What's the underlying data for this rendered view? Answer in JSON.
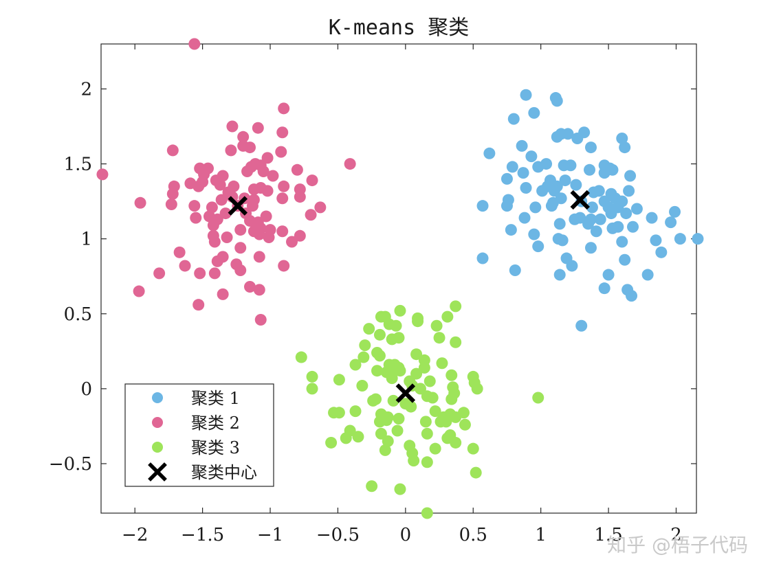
{
  "chart_data": {
    "type": "scatter",
    "title": "K-means 聚类",
    "xlabel": "",
    "ylabel": "",
    "xlim": [
      -2.25,
      2.15
    ],
    "ylim": [
      -0.83,
      2.3
    ],
    "x_ticks": [
      -2,
      -1.5,
      -1,
      -0.5,
      0,
      0.5,
      1,
      1.5,
      2
    ],
    "x_tick_labels": [
      "−2",
      "−1.5",
      "−1",
      "−0.5",
      "0",
      "0.5",
      "1",
      "1.5",
      "2"
    ],
    "y_ticks": [
      -0.5,
      0,
      0.5,
      1,
      1.5,
      2
    ],
    "y_tick_labels": [
      "−0.5",
      "0",
      "0.5",
      "1",
      "1.5",
      "2"
    ],
    "grid": false,
    "legend_position": "bottom-left",
    "series": [
      {
        "name": "聚类 1",
        "color": "#6cb6e4",
        "points": [
          [
            0.89,
            1.96
          ],
          [
            1.11,
            1.94
          ],
          [
            1.12,
            1.92
          ],
          [
            0.95,
            1.84
          ],
          [
            0.8,
            1.8
          ],
          [
            1.15,
            1.7
          ],
          [
            1.2,
            1.7
          ],
          [
            1.32,
            1.71
          ],
          [
            1.12,
            1.68
          ],
          [
            1.27,
            1.67
          ],
          [
            1.6,
            1.67
          ],
          [
            0.86,
            1.62
          ],
          [
            1.37,
            1.61
          ],
          [
            1.62,
            1.61
          ],
          [
            0.62,
            1.57
          ],
          [
            0.93,
            1.55
          ],
          [
            1.04,
            1.5
          ],
          [
            1.17,
            1.49
          ],
          [
            1.22,
            1.49
          ],
          [
            1.47,
            1.49
          ],
          [
            0.79,
            1.48
          ],
          [
            0.98,
            1.48
          ],
          [
            1.36,
            1.46
          ],
          [
            1.51,
            1.47
          ],
          [
            1.53,
            1.46
          ],
          [
            0.87,
            1.44
          ],
          [
            1.47,
            1.44
          ],
          [
            1.66,
            1.42
          ],
          [
            0.75,
            1.4
          ],
          [
            1.07,
            1.39
          ],
          [
            1.18,
            1.39
          ],
          [
            1.05,
            1.35
          ],
          [
            1.12,
            1.35
          ],
          [
            1.26,
            1.36
          ],
          [
            0.89,
            1.34
          ],
          [
            1.01,
            1.32
          ],
          [
            1.1,
            1.32
          ],
          [
            1.39,
            1.31
          ],
          [
            1.43,
            1.32
          ],
          [
            1.52,
            1.3
          ],
          [
            1.65,
            1.32
          ],
          [
            1.15,
            1.27
          ],
          [
            1.55,
            1.27
          ],
          [
            0.76,
            1.26
          ],
          [
            1.09,
            1.24
          ],
          [
            1.3,
            1.25
          ],
          [
            1.47,
            1.25
          ],
          [
            1.6,
            1.25
          ],
          [
            0.57,
            1.22
          ],
          [
            0.75,
            1.22
          ],
          [
            0.96,
            1.21
          ],
          [
            1.08,
            1.22
          ],
          [
            1.38,
            1.21
          ],
          [
            1.5,
            1.21
          ],
          [
            1.57,
            1.21
          ],
          [
            1.71,
            1.2
          ],
          [
            1.99,
            1.18
          ],
          [
            1.52,
            1.17
          ],
          [
            1.63,
            1.17
          ],
          [
            0.88,
            1.14
          ],
          [
            1.25,
            1.13
          ],
          [
            1.29,
            1.14
          ],
          [
            1.37,
            1.13
          ],
          [
            1.44,
            1.13
          ],
          [
            1.82,
            1.14
          ],
          [
            1.14,
            1.1
          ],
          [
            1.35,
            1.1
          ],
          [
            1.57,
            1.08
          ],
          [
            1.68,
            1.08
          ],
          [
            1.96,
            1.11
          ],
          [
            0.78,
            1.06
          ],
          [
            1.41,
            1.05
          ],
          [
            1.53,
            1.07
          ],
          [
            0.95,
            1.03
          ],
          [
            1.13,
            1.0
          ],
          [
            1.16,
            0.99
          ],
          [
            1.6,
            0.98
          ],
          [
            1.85,
            0.99
          ],
          [
            2.03,
            1.0
          ],
          [
            2.16,
            1.0
          ],
          [
            0.98,
            0.95
          ],
          [
            1.37,
            0.94
          ],
          [
            1.89,
            0.91
          ],
          [
            0.57,
            0.87
          ],
          [
            1.19,
            0.87
          ],
          [
            1.62,
            0.86
          ],
          [
            1.23,
            0.82
          ],
          [
            0.81,
            0.79
          ],
          [
            1.14,
            0.76
          ],
          [
            1.5,
            0.76
          ],
          [
            1.79,
            0.76
          ],
          [
            1.47,
            0.67
          ],
          [
            1.64,
            0.66
          ],
          [
            1.67,
            0.62
          ],
          [
            1.3,
            0.42
          ]
        ]
      },
      {
        "name": "聚类 2",
        "color": "#e06694",
        "points": [
          [
            -1.56,
            2.3
          ],
          [
            -0.9,
            1.87
          ],
          [
            -1.28,
            1.75
          ],
          [
            -1.09,
            1.74
          ],
          [
            -0.91,
            1.71
          ],
          [
            -1.2,
            1.68
          ],
          [
            -1.2,
            1.62
          ],
          [
            -1.15,
            1.61
          ],
          [
            -1.29,
            1.59
          ],
          [
            -1.72,
            1.59
          ],
          [
            -0.92,
            1.58
          ],
          [
            -1.02,
            1.54
          ],
          [
            -0.41,
            1.5
          ],
          [
            -1.14,
            1.48
          ],
          [
            -1.11,
            1.5
          ],
          [
            -1.07,
            1.49
          ],
          [
            -1.52,
            1.47
          ],
          [
            -1.46,
            1.47
          ],
          [
            -0.8,
            1.46
          ],
          [
            -1.17,
            1.45
          ],
          [
            -1.05,
            1.45
          ],
          [
            -2.24,
            1.43
          ],
          [
            -1.49,
            1.43
          ],
          [
            -1.35,
            1.42
          ],
          [
            -0.98,
            1.42
          ],
          [
            -1.4,
            1.39
          ],
          [
            -1.5,
            1.38
          ],
          [
            -0.69,
            1.39
          ],
          [
            -1.37,
            1.36
          ],
          [
            -1.71,
            1.35
          ],
          [
            -1.53,
            1.35
          ],
          [
            -1.27,
            1.35
          ],
          [
            -0.9,
            1.35
          ],
          [
            -1.59,
            1.37
          ],
          [
            -1.12,
            1.33
          ],
          [
            -1.07,
            1.34
          ],
          [
            -1.31,
            1.31
          ],
          [
            -1.02,
            1.32
          ],
          [
            -0.78,
            1.33
          ],
          [
            -1.72,
            1.3
          ],
          [
            -0.78,
            1.28
          ],
          [
            -1.28,
            1.28
          ],
          [
            -1.19,
            1.27
          ],
          [
            -1.36,
            1.26
          ],
          [
            -0.91,
            1.27
          ],
          [
            -1.12,
            1.26
          ],
          [
            -1.96,
            1.24
          ],
          [
            -1.73,
            1.23
          ],
          [
            -1.56,
            1.22
          ],
          [
            -1.43,
            1.21
          ],
          [
            -1.24,
            1.22
          ],
          [
            -1.13,
            1.22
          ],
          [
            -0.63,
            1.21
          ],
          [
            -1.33,
            1.17
          ],
          [
            -1.18,
            1.17
          ],
          [
            -0.7,
            1.16
          ],
          [
            -1.45,
            1.15
          ],
          [
            -1.03,
            1.15
          ],
          [
            -1.55,
            1.14
          ],
          [
            -1.39,
            1.13
          ],
          [
            -1.15,
            1.12
          ],
          [
            -1.09,
            1.11
          ],
          [
            -1.42,
            1.09
          ],
          [
            -1.07,
            1.07
          ],
          [
            -1.22,
            1.06
          ],
          [
            -1.0,
            1.06
          ],
          [
            -0.91,
            1.05
          ],
          [
            -1.12,
            1.05
          ],
          [
            -1.42,
            1.02
          ],
          [
            -1.08,
            1.03
          ],
          [
            -0.78,
            1.02
          ],
          [
            -1.32,
            1.01
          ],
          [
            -1.01,
            1.01
          ],
          [
            -1.41,
            0.98
          ],
          [
            -0.84,
            0.98
          ],
          [
            -1.22,
            0.94
          ],
          [
            -1.67,
            0.91
          ],
          [
            -1.35,
            0.88
          ],
          [
            -1.39,
            0.85
          ],
          [
            -1.08,
            0.88
          ],
          [
            -1.25,
            0.83
          ],
          [
            -1.63,
            0.82
          ],
          [
            -1.22,
            0.79
          ],
          [
            -0.9,
            0.82
          ],
          [
            -1.82,
            0.77
          ],
          [
            -1.52,
            0.77
          ],
          [
            -1.41,
            0.77
          ],
          [
            -1.15,
            0.68
          ],
          [
            -1.08,
            0.66
          ],
          [
            -1.97,
            0.65
          ],
          [
            -1.35,
            0.63
          ],
          [
            -1.53,
            0.56
          ],
          [
            -1.07,
            0.46
          ]
        ]
      },
      {
        "name": "聚类 3",
        "color": "#9ee45a",
        "points": [
          [
            0.37,
            0.55
          ],
          [
            -0.04,
            0.52
          ],
          [
            -0.18,
            0.48
          ],
          [
            -0.15,
            0.48
          ],
          [
            0.09,
            0.47
          ],
          [
            0.31,
            0.48
          ],
          [
            0.09,
            0.45
          ],
          [
            -0.12,
            0.43
          ],
          [
            -0.07,
            0.42
          ],
          [
            0.23,
            0.42
          ],
          [
            -0.27,
            0.4
          ],
          [
            0.25,
            0.34
          ],
          [
            -0.19,
            0.36
          ],
          [
            -0.1,
            0.33
          ],
          [
            -0.05,
            0.34
          ],
          [
            0.37,
            0.31
          ],
          [
            -0.3,
            0.29
          ],
          [
            -0.21,
            0.24
          ],
          [
            0.08,
            0.23
          ],
          [
            -0.19,
            0.22
          ],
          [
            -0.31,
            0.21
          ],
          [
            -0.77,
            0.21
          ],
          [
            0.14,
            0.19
          ],
          [
            -0.08,
            0.16
          ],
          [
            -0.12,
            0.16
          ],
          [
            -0.05,
            0.14
          ],
          [
            0.27,
            0.17
          ],
          [
            -0.08,
            0.13
          ],
          [
            -0.37,
            0.16
          ],
          [
            0.14,
            0.14
          ],
          [
            -0.21,
            0.12
          ],
          [
            -0.14,
            0.11
          ],
          [
            -0.04,
            0.12
          ],
          [
            0.08,
            0.1
          ],
          [
            0.34,
            0.09
          ],
          [
            -0.69,
            0.08
          ],
          [
            -0.49,
            0.06
          ],
          [
            -0.1,
            0.07
          ],
          [
            0.03,
            0.05
          ],
          [
            0.05,
            0.02
          ],
          [
            0.18,
            0.05
          ],
          [
            -0.32,
            0.02
          ],
          [
            0.5,
            0.08
          ],
          [
            0.51,
            0.04
          ],
          [
            -0.69,
            0.0
          ],
          [
            0.11,
            0.0
          ],
          [
            0.35,
            0.01
          ],
          [
            0.53,
            0.0
          ],
          [
            0.16,
            -0.05
          ],
          [
            0.36,
            -0.03
          ],
          [
            0.98,
            -0.06
          ],
          [
            -0.22,
            -0.07
          ],
          [
            0.2,
            -0.06
          ],
          [
            -0.09,
            -0.08
          ],
          [
            0.34,
            -0.07
          ],
          [
            0.0,
            -0.1
          ],
          [
            -0.24,
            -0.08
          ],
          [
            0.04,
            -0.12
          ],
          [
            0.22,
            -0.15
          ],
          [
            -0.37,
            -0.15
          ],
          [
            -0.53,
            -0.16
          ],
          [
            -0.49,
            -0.16
          ],
          [
            -0.18,
            -0.17
          ],
          [
            0.33,
            -0.17
          ],
          [
            0.43,
            -0.16
          ],
          [
            -0.13,
            -0.19
          ],
          [
            0.37,
            -0.19
          ],
          [
            0.28,
            -0.19
          ],
          [
            0.3,
            -0.22
          ],
          [
            -0.14,
            -0.21
          ],
          [
            -0.05,
            -0.2
          ],
          [
            -0.19,
            -0.22
          ],
          [
            0.15,
            -0.22
          ],
          [
            0.26,
            -0.22
          ],
          [
            0.44,
            -0.24
          ],
          [
            -0.41,
            -0.28
          ],
          [
            -0.06,
            -0.28
          ],
          [
            0.16,
            -0.3
          ],
          [
            -0.18,
            -0.3
          ],
          [
            0.33,
            -0.31
          ],
          [
            -0.44,
            -0.33
          ],
          [
            -0.35,
            -0.32
          ],
          [
            0.31,
            -0.33
          ],
          [
            0.37,
            -0.36
          ],
          [
            -0.55,
            -0.36
          ],
          [
            -0.13,
            -0.35
          ],
          [
            0.03,
            -0.38
          ],
          [
            0.05,
            -0.43
          ],
          [
            -0.15,
            -0.41
          ],
          [
            0.22,
            -0.4
          ],
          [
            0.5,
            -0.4
          ],
          [
            0.16,
            -0.49
          ],
          [
            0.06,
            -0.48
          ],
          [
            0.52,
            -0.56
          ],
          [
            -0.25,
            -0.65
          ],
          [
            -0.04,
            -0.67
          ],
          [
            0.16,
            -0.83
          ]
        ]
      }
    ],
    "centroids": {
      "name": "聚类中心",
      "color": "#000000",
      "marker": "x",
      "points": [
        [
          1.29,
          1.26
        ],
        [
          -1.24,
          1.22
        ],
        [
          0.0,
          -0.03
        ]
      ]
    }
  },
  "watermark": "知乎 @梧子代码"
}
